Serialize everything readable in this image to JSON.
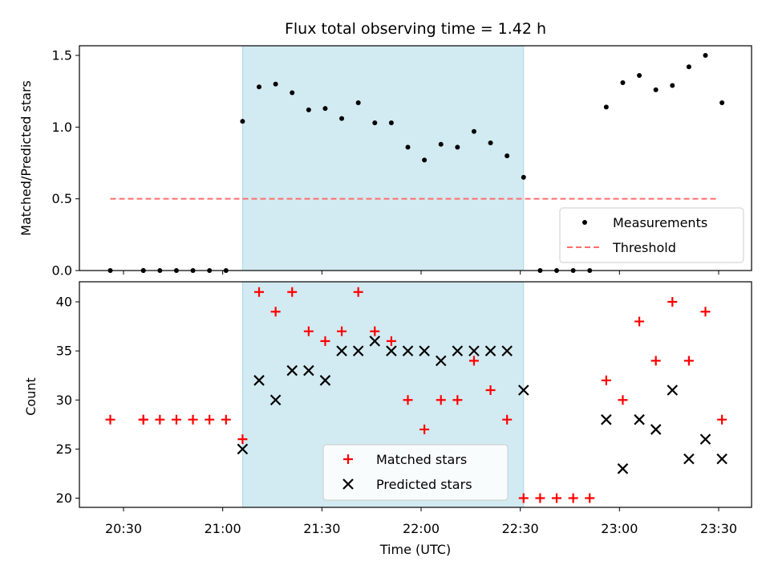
{
  "chart_data": {
    "title": "Flux total observing time = 1.42 h",
    "xlabel": "Time (UTC)",
    "x_tick_labels": [
      "20:30",
      "21:00",
      "21:30",
      "22:00",
      "22:30",
      "23:00",
      "23:30"
    ],
    "shaded_region": {
      "start": "21:06",
      "end": "22:31",
      "color": "#add8e6"
    },
    "panels": [
      {
        "type": "scatter",
        "ylabel": "Matched/Predicted stars",
        "ylim": [
          0,
          1.6
        ],
        "yticks": [
          "0.0",
          "0.5",
          "1.0",
          "1.5"
        ],
        "legend": "bottom-right",
        "series": [
          {
            "name": "Measurements",
            "color": "#000000",
            "marker": "dot",
            "points": [
              [
                "20:26",
                0
              ],
              [
                "20:36",
                0
              ],
              [
                "20:36",
                0
              ],
              [
                "20:41",
                0
              ],
              [
                "20:46",
                0
              ],
              [
                "20:51",
                0
              ],
              [
                "20:56",
                0
              ],
              [
                "21:01",
                0
              ],
              [
                "21:06",
                1.04
              ],
              [
                "21:11",
                1.28
              ],
              [
                "21:16",
                1.3
              ],
              [
                "21:21",
                1.24
              ],
              [
                "21:26",
                1.12
              ],
              [
                "21:31",
                1.13
              ],
              [
                "21:36",
                1.06
              ],
              [
                "21:41",
                1.17
              ],
              [
                "21:46",
                1.03
              ],
              [
                "21:51",
                1.03
              ],
              [
                "21:56",
                0.86
              ],
              [
                "22:01",
                0.77
              ],
              [
                "22:06",
                0.88
              ],
              [
                "22:11",
                0.86
              ],
              [
                "22:16",
                0.97
              ],
              [
                "22:21",
                0.89
              ],
              [
                "22:26",
                0.8
              ],
              [
                "22:31",
                0.65
              ],
              [
                "22:36",
                0
              ],
              [
                "22:41",
                0
              ],
              [
                "22:46",
                0
              ],
              [
                "22:51",
                0
              ],
              [
                "22:56",
                1.14
              ],
              [
                "23:01",
                1.31
              ],
              [
                "23:06",
                1.36
              ],
              [
                "23:11",
                1.26
              ],
              [
                "23:16",
                1.29
              ],
              [
                "23:21",
                1.42
              ],
              [
                "23:26",
                1.5
              ],
              [
                "23:31",
                1.17
              ]
            ]
          },
          {
            "name": "Threshold",
            "color": "#ff6e6e",
            "style": "dashed",
            "points": [
              [
                "20:26",
                0.5
              ],
              [
                "23:30",
                0.5
              ]
            ]
          }
        ]
      },
      {
        "type": "scatter",
        "ylabel": "Count",
        "ylim": [
          19,
          42
        ],
        "yticks": [
          "20",
          "25",
          "30",
          "35",
          "40"
        ],
        "legend": "bottom-center",
        "series": [
          {
            "name": "Matched stars",
            "color": "#ff0000",
            "marker": "plus",
            "points": [
              [
                "20:26",
                28
              ],
              [
                "20:36",
                28
              ],
              [
                "20:36",
                28
              ],
              [
                "20:41",
                28
              ],
              [
                "20:46",
                28
              ],
              [
                "20:51",
                28
              ],
              [
                "20:56",
                28
              ],
              [
                "21:01",
                28
              ],
              [
                "21:06",
                26
              ],
              [
                "21:11",
                41
              ],
              [
                "21:16",
                39
              ],
              [
                "21:21",
                41
              ],
              [
                "21:26",
                37
              ],
              [
                "21:31",
                36
              ],
              [
                "21:36",
                37
              ],
              [
                "21:41",
                41
              ],
              [
                "21:46",
                37
              ],
              [
                "21:51",
                36
              ],
              [
                "21:56",
                30
              ],
              [
                "22:01",
                27
              ],
              [
                "22:06",
                30
              ],
              [
                "22:11",
                30
              ],
              [
                "22:16",
                34
              ],
              [
                "22:21",
                31
              ],
              [
                "22:26",
                28
              ],
              [
                "22:31",
                20
              ],
              [
                "22:36",
                20
              ],
              [
                "22:41",
                20
              ],
              [
                "22:46",
                20
              ],
              [
                "22:51",
                20
              ],
              [
                "22:56",
                32
              ],
              [
                "23:01",
                30
              ],
              [
                "23:06",
                38
              ],
              [
                "23:11",
                34
              ],
              [
                "23:16",
                40
              ],
              [
                "23:21",
                34
              ],
              [
                "23:26",
                39
              ],
              [
                "23:31",
                28
              ]
            ]
          },
          {
            "name": "Predicted stars",
            "color": "#000000",
            "marker": "x",
            "points": [
              [
                "21:06",
                25
              ],
              [
                "21:11",
                32
              ],
              [
                "21:16",
                30
              ],
              [
                "21:21",
                33
              ],
              [
                "21:26",
                33
              ],
              [
                "21:31",
                32
              ],
              [
                "21:36",
                35
              ],
              [
                "21:41",
                35
              ],
              [
                "21:46",
                36
              ],
              [
                "21:51",
                35
              ],
              [
                "21:56",
                35
              ],
              [
                "22:01",
                35
              ],
              [
                "22:06",
                34
              ],
              [
                "22:11",
                35
              ],
              [
                "22:16",
                35
              ],
              [
                "22:21",
                35
              ],
              [
                "22:26",
                35
              ],
              [
                "22:31",
                31
              ],
              [
                "22:56",
                28
              ],
              [
                "23:01",
                23
              ],
              [
                "23:06",
                28
              ],
              [
                "23:11",
                27
              ],
              [
                "23:16",
                31
              ],
              [
                "23:21",
                24
              ],
              [
                "23:26",
                26
              ],
              [
                "23:31",
                24
              ]
            ]
          }
        ]
      }
    ]
  }
}
